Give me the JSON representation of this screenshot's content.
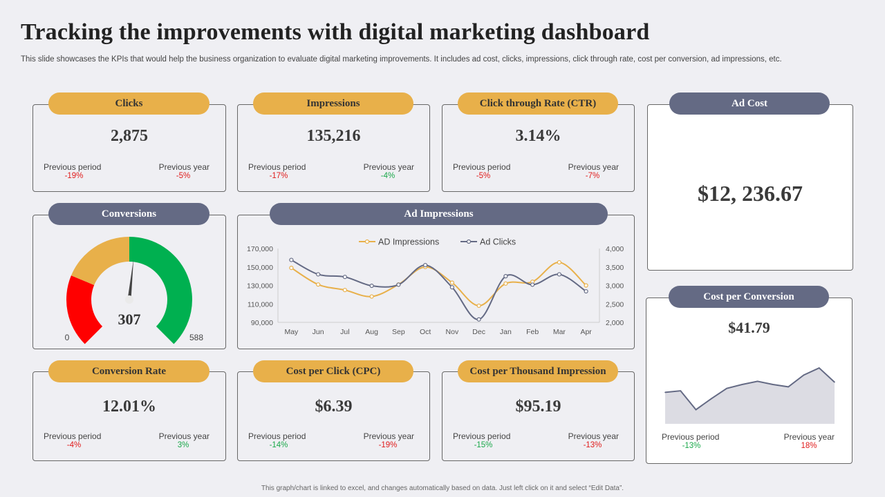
{
  "header": {
    "title": "Tracking the improvements with digital marketing dashboard",
    "subtitle": "This slide showcases the KPIs that would help the business organization to evaluate digital marketing improvements. It includes ad cost, clicks, impressions, click through rate, cost per conversion, ad impressions, etc.",
    "footer": "This graph/chart is linked to excel, and changes automatically based on data. Just left click on it and select “Edit Data”."
  },
  "labels": {
    "previous_period": "Previous period",
    "previous_year": "Previous year"
  },
  "kpis": {
    "clicks": {
      "title": "Clicks",
      "value": "2,875",
      "prev_period": "-19%",
      "prev_year": "-5%"
    },
    "impressions": {
      "title": "Impressions",
      "value": "135,216",
      "prev_period": "-17%",
      "prev_year": "-4%"
    },
    "ctr": {
      "title": "Click through  Rate (CTR)",
      "value": "3.14%",
      "prev_period": "-5%",
      "prev_year": "-7%"
    },
    "conversion_rate": {
      "title": "Conversion Rate",
      "value": "12.01%",
      "prev_period": "-4%",
      "prev_year": "3%"
    },
    "cpc": {
      "title": "Cost per Click (CPC)",
      "value": "$6.39",
      "prev_period": "-14%",
      "prev_year": "-19%"
    },
    "cpm": {
      "title": "Cost per Thousand Impression",
      "value": "$95.19",
      "prev_period": "-15%",
      "prev_year": "-13%"
    },
    "ad_cost": {
      "title": "Ad Cost",
      "value": "$12, 236.67"
    },
    "cost_per_conversion": {
      "title": "Cost per Conversion",
      "value": "$41.79",
      "prev_period": "-13%",
      "prev_year": "18%"
    }
  },
  "colors": {
    "gold": "#e8b04a",
    "slate": "#646a84",
    "red": "#e01b1b",
    "green": "#1aa84a",
    "gauge_red": "#ff0000",
    "gauge_gold": "#e8b04a",
    "gauge_green": "#00b050"
  },
  "chart_data": [
    {
      "type": "gauge",
      "title": "Conversions",
      "value": 307,
      "min": 0,
      "max": 588,
      "value_label": "307",
      "min_label": "0",
      "max_label": "588",
      "bands": [
        {
          "from": 0,
          "to": 147,
          "color": "#ff0000"
        },
        {
          "from": 147,
          "to": 294,
          "color": "#e8b04a"
        },
        {
          "from": 294,
          "to": 588,
          "color": "#00b050"
        }
      ]
    },
    {
      "type": "line",
      "title": "Ad Impressions",
      "categories": [
        "May",
        "Jun",
        "Jul",
        "Aug",
        "Sep",
        "Oct",
        "Nov",
        "Dec",
        "Jan",
        "Feb",
        "Mar",
        "Apr"
      ],
      "series": [
        {
          "name": "AD Impressions",
          "axis": "left",
          "color": "#e8b04a",
          "values": [
            149000,
            131000,
            125000,
            118000,
            131000,
            150000,
            133000,
            108000,
            132000,
            134000,
            155000,
            130000
          ]
        },
        {
          "name": "Ad Clicks",
          "axis": "right",
          "color": "#646a84",
          "values": [
            3690,
            3300,
            3230,
            2990,
            3020,
            3550,
            2950,
            2080,
            3250,
            3020,
            3300,
            2840
          ]
        }
      ],
      "ylim_left": [
        90000,
        170000
      ],
      "ylim_right": [
        2000,
        4000
      ],
      "yticks_left": [
        "170,000",
        "150,000",
        "130,000",
        "110,000",
        "90,000"
      ],
      "yticks_right": [
        "4,000",
        "3,500",
        "3,000",
        "2,500",
        "2,000"
      ],
      "legend": "top-center",
      "grid": false
    },
    {
      "type": "area",
      "title": "Cost per Conversion",
      "values": [
        40,
        42,
        18,
        32,
        45,
        50,
        54,
        50,
        47,
        62,
        71,
        53
      ],
      "ylim": [
        0,
        100
      ],
      "color": "#646a84"
    }
  ]
}
